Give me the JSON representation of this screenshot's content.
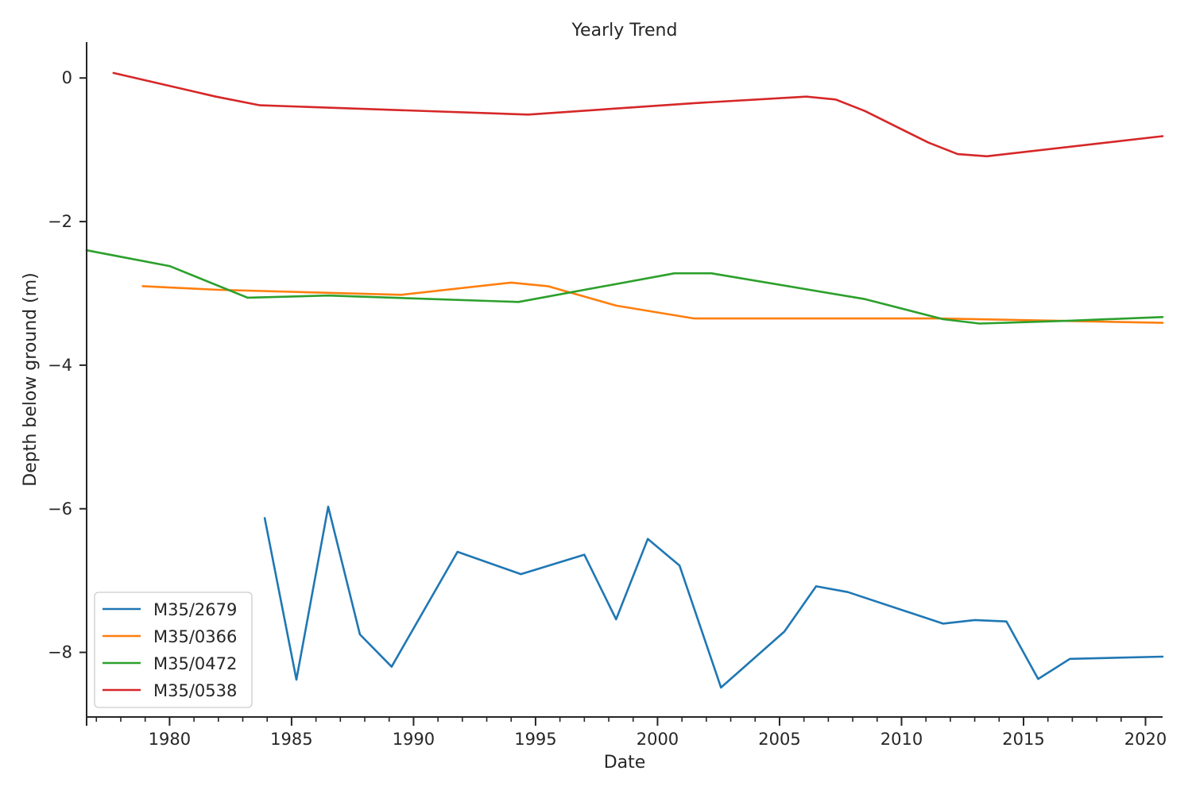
{
  "chart_data": {
    "type": "line",
    "title": "Yearly Trend",
    "xlabel": "Date",
    "ylabel": "Depth below ground (m)",
    "xlim": [
      1976.6,
      2020.7
    ],
    "ylim": [
      -8.9,
      0.5
    ],
    "x_major_ticks": [
      1980,
      1985,
      1990,
      1995,
      2000,
      2005,
      2010,
      2015,
      2020
    ],
    "y_ticks": [
      0,
      -2,
      -4,
      -6,
      -8
    ],
    "y_tick_labels": [
      "0",
      "−2",
      "−4",
      "−6",
      "−8"
    ],
    "grid": false,
    "legend_position": "lower-left",
    "series": [
      {
        "name": "M35/2679",
        "color": "#1f77b4",
        "points": [
          [
            1983.9,
            -6.13
          ],
          [
            1985.2,
            -8.38
          ],
          [
            1986.5,
            -5.97
          ],
          [
            1987.8,
            -7.75
          ],
          [
            1989.1,
            -8.2
          ],
          [
            1991.8,
            -6.6
          ],
          [
            1994.4,
            -6.91
          ],
          [
            1997.0,
            -6.64
          ],
          [
            1998.3,
            -7.54
          ],
          [
            1999.6,
            -6.42
          ],
          [
            2000.9,
            -6.79
          ],
          [
            2002.6,
            -8.49
          ],
          [
            2005.2,
            -7.71
          ],
          [
            2006.5,
            -7.08
          ],
          [
            2007.8,
            -7.16
          ],
          [
            2011.7,
            -7.6
          ],
          [
            2013.0,
            -7.55
          ],
          [
            2014.3,
            -7.57
          ],
          [
            2015.6,
            -8.37
          ],
          [
            2016.9,
            -8.09
          ],
          [
            2020.7,
            -8.06
          ]
        ]
      },
      {
        "name": "M35/0366",
        "color": "#ff7f0e",
        "points": [
          [
            1978.9,
            -2.9
          ],
          [
            1982.0,
            -2.95
          ],
          [
            1989.5,
            -3.02
          ],
          [
            1994.0,
            -2.85
          ],
          [
            1995.5,
            -2.9
          ],
          [
            1998.3,
            -3.17
          ],
          [
            2001.5,
            -3.35
          ],
          [
            2011.5,
            -3.35
          ],
          [
            2020.7,
            -3.41
          ]
        ]
      },
      {
        "name": "M35/0472",
        "color": "#2ca02c",
        "points": [
          [
            1976.6,
            -2.4
          ],
          [
            1980.0,
            -2.62
          ],
          [
            1983.2,
            -3.06
          ],
          [
            1986.5,
            -3.03
          ],
          [
            1994.3,
            -3.12
          ],
          [
            2000.7,
            -2.72
          ],
          [
            2002.2,
            -2.72
          ],
          [
            2008.5,
            -3.08
          ],
          [
            2011.7,
            -3.36
          ],
          [
            2013.2,
            -3.42
          ],
          [
            2016.9,
            -3.38
          ],
          [
            2020.7,
            -3.33
          ]
        ]
      },
      {
        "name": "M35/0538",
        "color": "#d62728",
        "points": [
          [
            1977.7,
            0.07
          ],
          [
            1981.9,
            -0.26
          ],
          [
            1983.7,
            -0.38
          ],
          [
            1994.7,
            -0.51
          ],
          [
            2001.5,
            -0.35
          ],
          [
            2006.1,
            -0.26
          ],
          [
            2007.3,
            -0.3
          ],
          [
            2008.5,
            -0.46
          ],
          [
            2011.1,
            -0.9
          ],
          [
            2012.3,
            -1.06
          ],
          [
            2013.5,
            -1.09
          ],
          [
            2020.7,
            -0.81
          ]
        ]
      }
    ]
  }
}
